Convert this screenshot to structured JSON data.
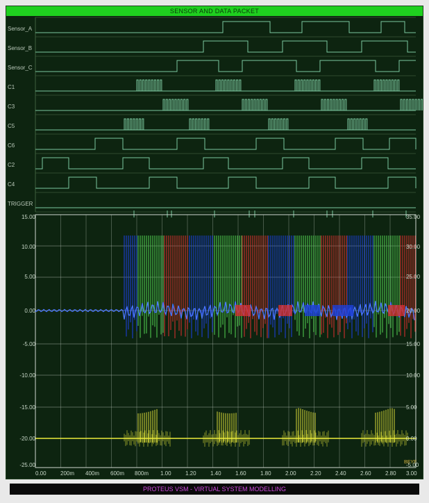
{
  "window": {
    "title": "SENSOR AND DATA PACKET"
  },
  "digital": {
    "signals": [
      {
        "name": "Sensor_A"
      },
      {
        "name": "Sensor_B"
      },
      {
        "name": "Sensor_C"
      },
      {
        "name": "C1"
      },
      {
        "name": "C3"
      },
      {
        "name": "C5"
      },
      {
        "name": "C6"
      },
      {
        "name": "C2"
      },
      {
        "name": "C4"
      },
      {
        "name": "TRIGGER"
      }
    ],
    "color": "#7cc9a0"
  },
  "analog": {
    "y_left_ticks": [
      "15.00",
      "10.00",
      "5.00",
      "0.00",
      "-5.00",
      "-10.00",
      "-15.00",
      "-20.00",
      "-25.00"
    ],
    "y_right_ticks": [
      "35.00",
      "30.00",
      "25.00",
      "20.00",
      "15.00",
      "10.00",
      "5.00",
      "0.00",
      "-5.00"
    ],
    "x_ticks": [
      "0.00",
      "200m",
      "400m",
      "600m",
      "800m",
      "1.00",
      "1.20",
      "1.40",
      "1.60",
      "1.80",
      "2.00",
      "2.20",
      "2.40",
      "2.60",
      "2.80",
      "3.00"
    ],
    "marker_label": "BEYF",
    "colors": {
      "grid": "#cfd8cf",
      "blue": "#1d3fd8",
      "green": "#4ec74e",
      "red": "#d23030",
      "yellow": "#ecec3c",
      "background": "#0d2410"
    }
  },
  "status": {
    "text": "PROTEUS VSM - VIRTUAL SYSTEM MODELLING"
  }
}
